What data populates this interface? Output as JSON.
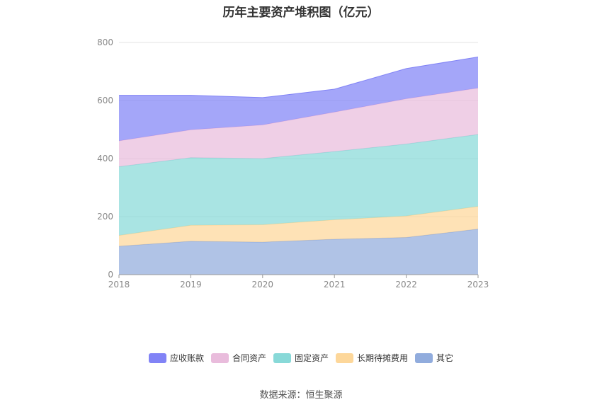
{
  "chart_data": {
    "type": "area",
    "stacked": true,
    "title": "历年主要资产堆积图（亿元）",
    "categories": [
      "2018",
      "2019",
      "2020",
      "2021",
      "2022",
      "2023"
    ],
    "ylim": [
      0,
      800
    ],
    "yticks": [
      "0",
      "200",
      "400",
      "600",
      "800"
    ],
    "grid": true,
    "legend_position": "bottom",
    "series": [
      {
        "name": "其它",
        "color": "#91acdd",
        "values": [
          98,
          115,
          112,
          122,
          128,
          157
        ]
      },
      {
        "name": "长期待摊费用",
        "color": "#fdd79a",
        "values": [
          37,
          55,
          60,
          67,
          74,
          78
        ]
      },
      {
        "name": "固定资产",
        "color": "#88d9d8",
        "values": [
          237,
          233,
          228,
          235,
          248,
          248
        ]
      },
      {
        "name": "合同资产",
        "color": "#e9bcdc",
        "values": [
          89,
          96,
          116,
          136,
          156,
          160
        ]
      },
      {
        "name": "应收账款",
        "color": "#8183f6",
        "values": [
          157,
          119,
          94,
          79,
          104,
          107
        ]
      }
    ]
  },
  "legend_order": [
    "应收账款",
    "合同资产",
    "固定资产",
    "长期待摊费用",
    "其它"
  ],
  "source": "数据来源：恒生聚源"
}
